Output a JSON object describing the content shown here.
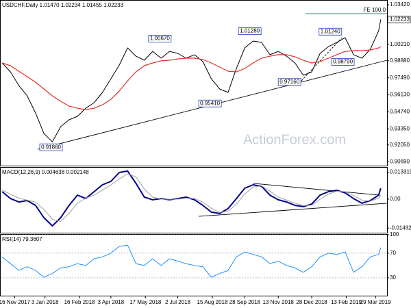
{
  "chart_data": [
    {
      "type": "line",
      "title": "USDCHF,Daily  1.01470 1.02234 1.01455 1.02233",
      "x": [
        -12,
        -4,
        4,
        12,
        20,
        28,
        36,
        44,
        52,
        60,
        68,
        76,
        84,
        92,
        100,
        108,
        116,
        124,
        132,
        140,
        148,
        156,
        164,
        172,
        180,
        188,
        196,
        204,
        212,
        220,
        228,
        236,
        244,
        252,
        260,
        268,
        276,
        284,
        292,
        300,
        308,
        316,
        324,
        332,
        340,
        348,
        350
      ],
      "xlim": [
        -14,
        356
      ],
      "xticks": [
        {
          "value": 0,
          "label": "16 Nov 2017"
        },
        {
          "value": 29,
          "label": "3 Jan 2018"
        },
        {
          "value": 62,
          "label": "16 Feb 2018"
        },
        {
          "value": 92,
          "label": "3 Apr 2018"
        },
        {
          "value": 125,
          "label": "17 May 2018"
        },
        {
          "value": 156,
          "label": "2 Jul 2018"
        },
        {
          "value": 189,
          "label": "15 Aug 2018"
        },
        {
          "value": 220,
          "label": "28 Sep 2018"
        },
        {
          "value": 252,
          "label": "13 Nov 2018"
        },
        {
          "value": 284,
          "label": "28 Dec 2018"
        },
        {
          "value": 317,
          "label": "13 Feb 2019"
        },
        {
          "value": 345,
          "label": "29 Mar 2019"
        }
      ],
      "ylim": [
        0.9037,
        1.0381
      ],
      "yticks": [
        {
          "value": 1.0342,
          "label": "1.03420"
        },
        {
          "value": 1.0021,
          "label": "1.00210"
        },
        {
          "value": 0.9888,
          "label": "0.98880"
        },
        {
          "value": 0.9749,
          "label": "0.97490"
        },
        {
          "value": 0.9613,
          "label": "0.96130"
        },
        {
          "value": 0.9474,
          "label": "0.94740"
        },
        {
          "value": 0.9335,
          "label": "0.93350"
        },
        {
          "value": 0.9205,
          "label": "0.92050"
        },
        {
          "value": 0.9069,
          "label": "0.90690"
        }
      ],
      "grid": false,
      "series": [
        {
          "color": "#000000",
          "width": 1,
          "values": [
            0.987,
            0.9798,
            0.9687,
            0.9603,
            0.9464,
            0.9298,
            0.923,
            0.9353,
            0.9409,
            0.9437,
            0.9503,
            0.9548,
            0.9631,
            0.9742,
            0.9853,
            0.9992,
            0.9925,
            0.9892,
            0.9964,
            0.9909,
            0.9964,
            0.9948,
            0.9909,
            0.9937,
            0.9881,
            0.9742,
            0.9659,
            0.9631,
            0.9825,
            0.9992,
            1.0048,
            1.0037,
            0.9937,
            0.9964,
            0.9925,
            0.987,
            0.977,
            0.9798,
            0.9948,
            1.0003,
            1.0037,
            1.0075,
            0.9937,
            0.9909,
            0.9981,
            1.0131,
            1.0223
          ]
        },
        {
          "color": "#e0302a",
          "width": 1.2,
          "values": [
            0.987,
            0.9848,
            0.9803,
            0.9759,
            0.9714,
            0.9659,
            0.9603,
            0.9559,
            0.952,
            0.9503,
            0.9492,
            0.9503,
            0.9531,
            0.9575,
            0.9642,
            0.9725,
            0.9798,
            0.9848,
            0.987,
            0.9887,
            0.9892,
            0.9903,
            0.9909,
            0.9909,
            0.9898,
            0.987,
            0.9837,
            0.9803,
            0.9798,
            0.9825,
            0.987,
            0.9909,
            0.9925,
            0.9937,
            0.9937,
            0.992,
            0.9892,
            0.987,
            0.9881,
            0.9909,
            0.9937,
            0.9964,
            0.997,
            0.997,
            0.9975,
            0.9992,
            1.0003
          ]
        }
      ],
      "trendlines": [
        {
          "x": [
            22,
            356
          ],
          "values": [
            0.917,
            0.9892
          ],
          "dashed": false
        },
        {
          "x": [
            274,
            313
          ],
          "values": [
            0.9725,
            1.0075
          ],
          "dashed": true
        }
      ],
      "annotations": [
        {
          "value": 1.0067,
          "label": "1.00670",
          "x": 128
        },
        {
          "value": 1.0128,
          "label": "1.01280",
          "x": 214
        },
        {
          "value": 1.0124,
          "label": "1.01240",
          "x": 291
        },
        {
          "value": 0.9879,
          "label": "0.98790",
          "x": 303
        },
        {
          "value": 0.9716,
          "label": "0.97160",
          "x": 252
        },
        {
          "value": 0.9541,
          "label": "0.95410",
          "x": 176
        },
        {
          "value": 0.9186,
          "label": "0.91860",
          "x": 24
        }
      ],
      "fe": {
        "label": "FE 100.0",
        "value": 1.027,
        "x": [
          278,
          356
        ]
      },
      "last_price": {
        "value": 1.02233,
        "label": "1.02233"
      },
      "watermark": "ActionForex.com"
    },
    {
      "type": "line",
      "title": "MACD(12,26,9) 0.004638 0.002148",
      "ylim": [
        -0.0166,
        0.0159
      ],
      "yticks": [
        {
          "value": 0.013319,
          "label": "0.013319"
        },
        {
          "value": 0,
          "label": "0.00"
        },
        {
          "value": -0.014323,
          "label": "-0.014323"
        }
      ],
      "grid": false,
      "series": [
        {
          "color": "#00008b",
          "width": 2,
          "values": [
            0.0037,
            0.0003,
            -0.0014,
            -0.0007,
            -0.0031,
            -0.0092,
            -0.0132,
            -0.0092,
            -0.0031,
            0.002,
            0.0003,
            0.0037,
            0.0071,
            0.0088,
            0.0132,
            0.0139,
            0.0078,
            0.001,
            -0.0003,
            0.0003,
            -0.0003,
            0.0003,
            0.001,
            -0.0003,
            -0.0031,
            -0.0064,
            -0.0071,
            -0.0047,
            0.0003,
            0.0054,
            0.0071,
            0.0064,
            0.002,
            -0.0003,
            -0.0014,
            -0.0031,
            -0.0037,
            -0.0024,
            0.002,
            0.0037,
            0.0044,
            0.0031,
            0.0003,
            -0.002,
            -0.0007,
            0.002,
            0.0054
          ]
        },
        {
          "color": "#a0a0a0",
          "width": 1,
          "values": [
            0.0045,
            0.0025,
            0.0005,
            -0.0005,
            -0.0015,
            -0.005,
            -0.01,
            -0.011,
            -0.007,
            -0.002,
            0.0005,
            0.002,
            0.0045,
            0.007,
            0.01,
            0.0125,
            0.011,
            0.005,
            0.001,
            0.0,
            0.0,
            0.0,
            0.0005,
            0.0003,
            -0.0015,
            -0.0045,
            -0.0065,
            -0.006,
            -0.0025,
            0.0025,
            0.006,
            0.0066,
            0.004,
            0.001,
            -0.0005,
            -0.002,
            -0.0032,
            -0.003,
            0.0,
            0.0025,
            0.004,
            0.0037,
            0.0018,
            -0.0005,
            -0.001,
            0.0005,
            0.0021
          ]
        }
      ],
      "trendlines": [
        {
          "x": [
            228,
            349
          ],
          "values": [
            0.0078,
            0.002
          ],
          "dashed": false
        },
        {
          "x": [
            176,
            356
          ],
          "values": [
            -0.0085,
            -0.002
          ],
          "dashed": false
        }
      ]
    },
    {
      "type": "line",
      "title": "RSI(14) 79.3607",
      "ylim": [
        1,
        101
      ],
      "yticks": [
        100,
        70,
        30
      ],
      "grid": true,
      "series": [
        {
          "color": "#1e90ff",
          "width": 1,
          "values": [
            64,
            53,
            42,
            48,
            42,
            31,
            37,
            46,
            48,
            53,
            50,
            61,
            64,
            70,
            81,
            83,
            53,
            50,
            61,
            50,
            61,
            57,
            53,
            50,
            48,
            31,
            37,
            42,
            64,
            72,
            68,
            64,
            53,
            57,
            50,
            46,
            39,
            48,
            64,
            70,
            68,
            72,
            39,
            48,
            64,
            68,
            79
          ]
        }
      ]
    }
  ]
}
